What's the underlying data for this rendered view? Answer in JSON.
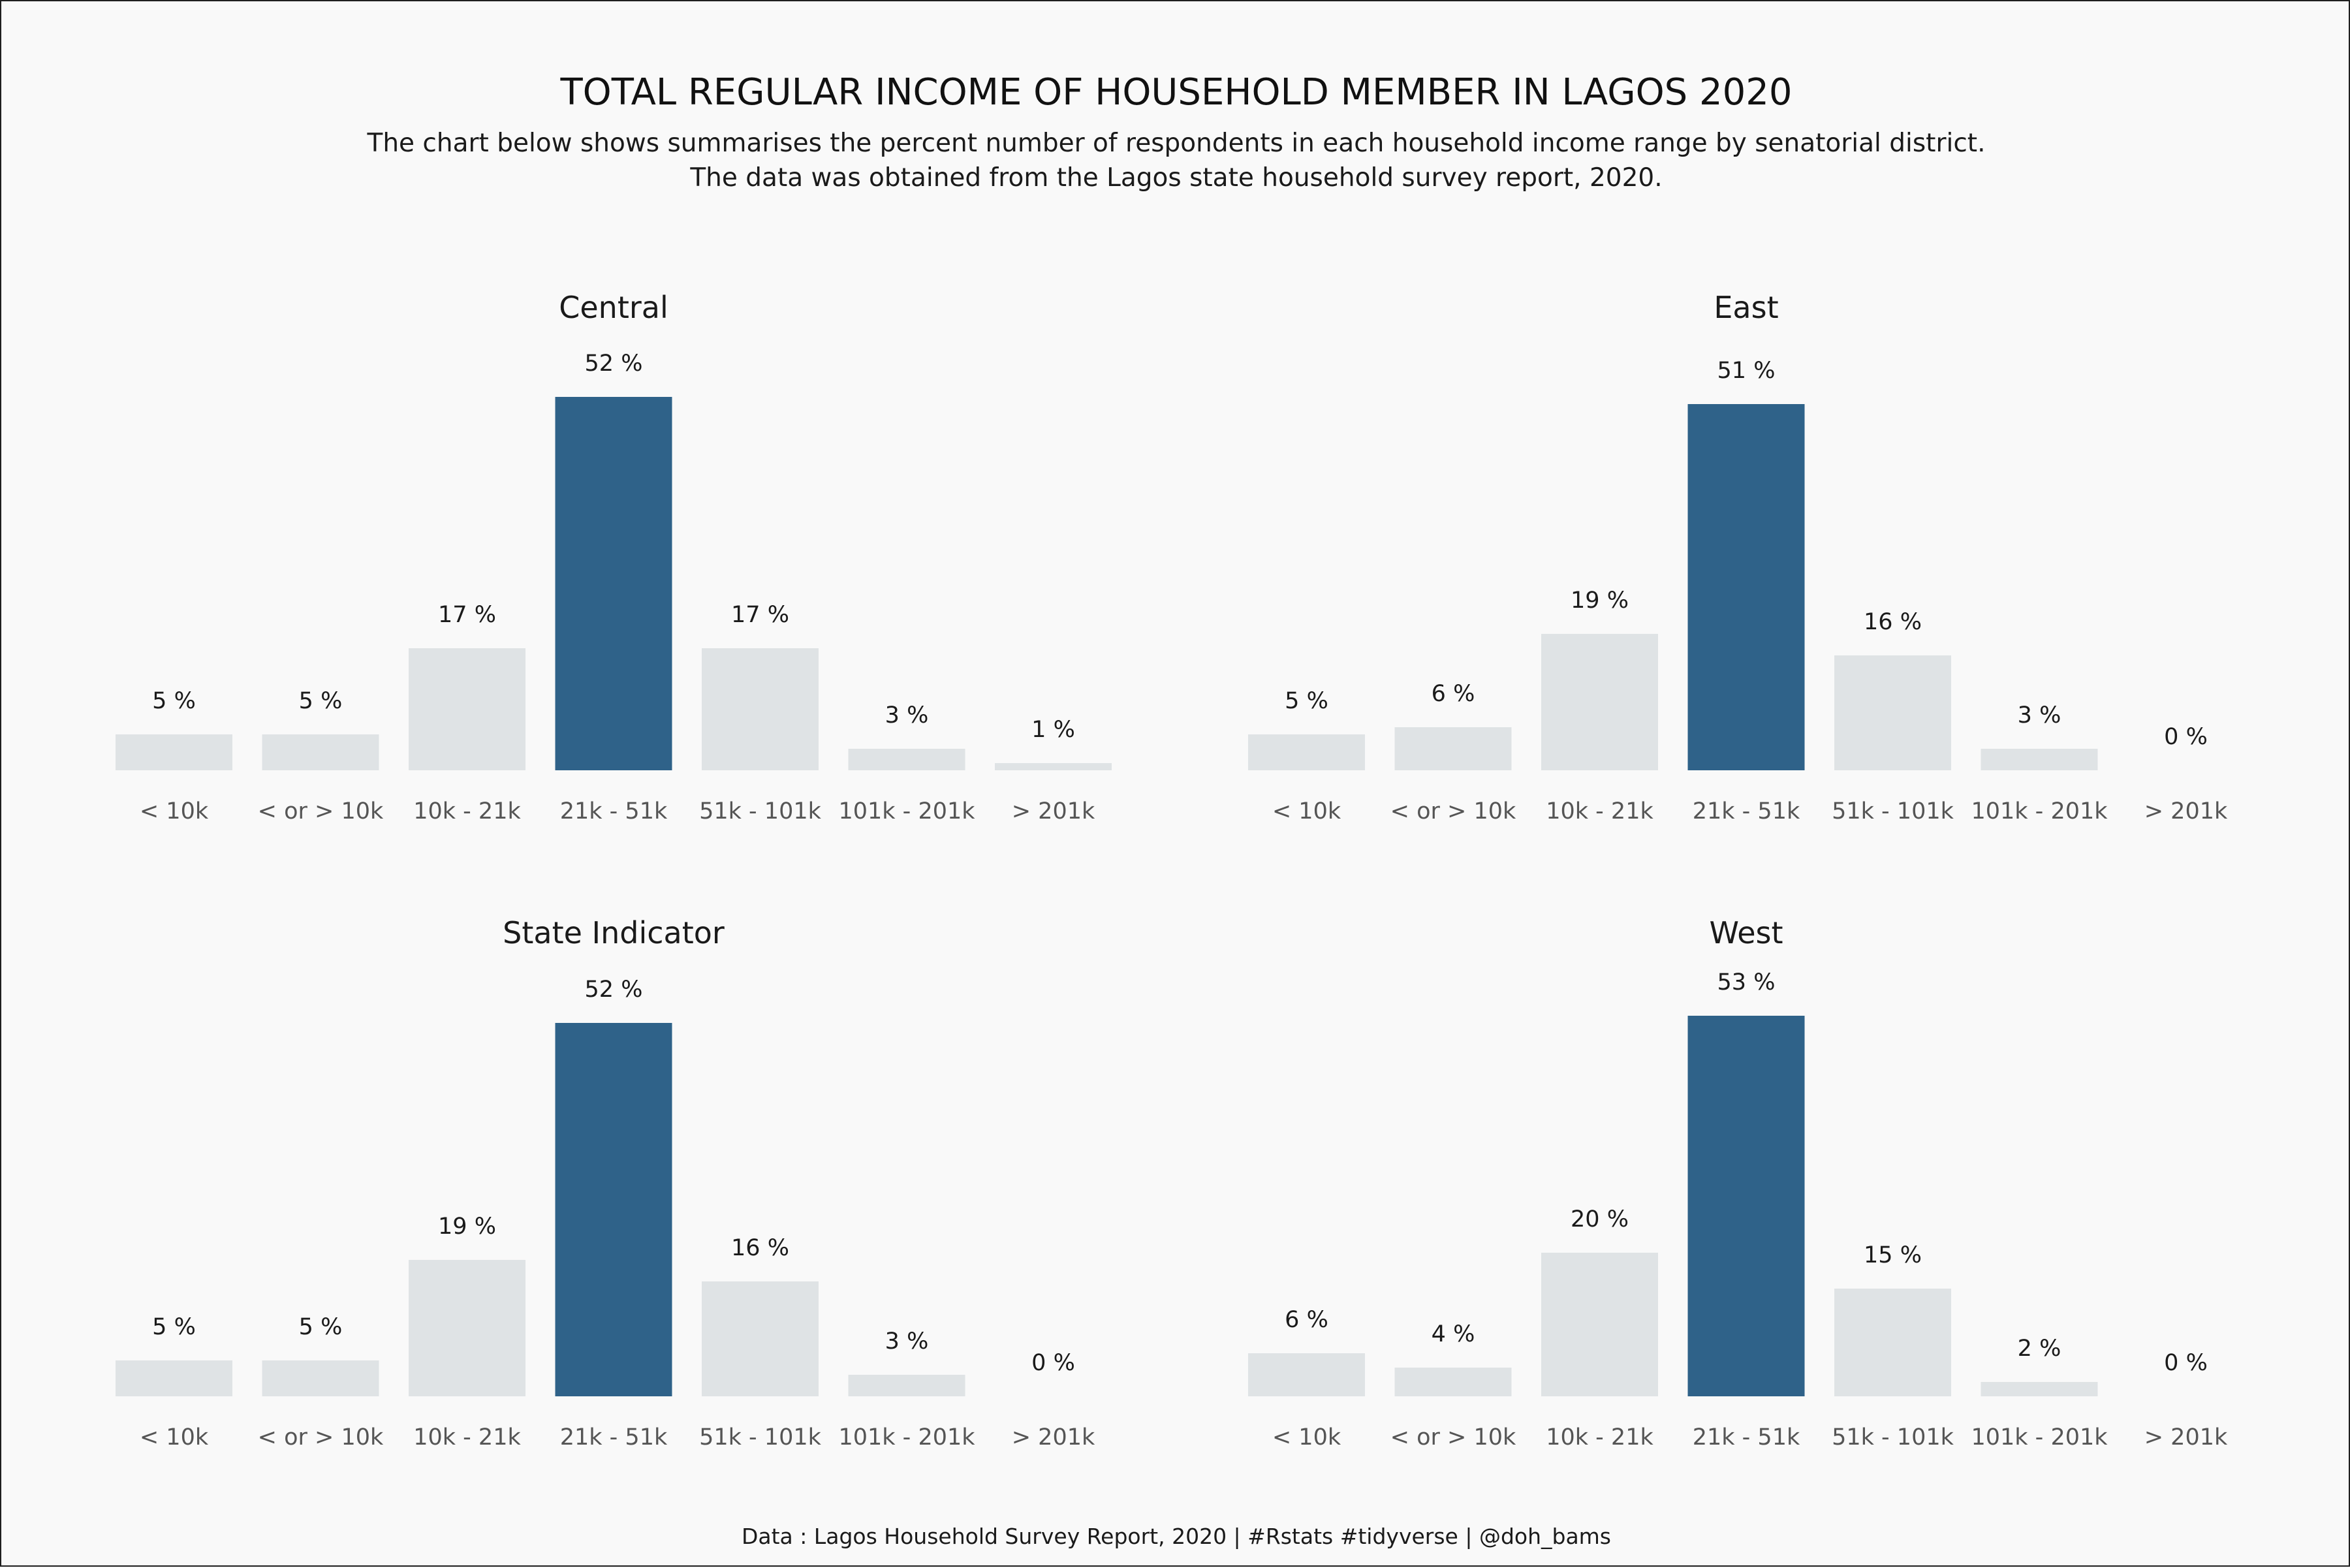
{
  "title": "TOTAL REGULAR INCOME OF HOUSEHOLD MEMBER IN LAGOS 2020",
  "subtitle_lines": [
    "The chart below shows summarises the percent number of respondents in each household income range by senatorial district.",
    "The data was obtained from the Lagos state household survey report, 2020."
  ],
  "caption": "Data : Lagos Household Survey Report, 2020 | #Rstats #tidyverse | @doh_bams",
  "colors": {
    "background": "#f9f9f9",
    "highlight": "#2f6289",
    "base": "#dfe3e5",
    "frame": "#1f1f1f"
  },
  "chart_data": {
    "type": "bar",
    "layout": "facet-2x2",
    "categories": [
      "< 10k",
      "< or > 10k",
      "10k - 21k",
      "21k - 51k",
      "51k - 101k",
      "101k - 201k",
      "> 201k"
    ],
    "highlight_category": "21k - 51k",
    "value_suffix": " %",
    "ylim": [
      0,
      55
    ],
    "grid": false,
    "legend": "none",
    "panels": [
      {
        "name": "Central",
        "values": [
          5,
          5,
          17,
          52,
          17,
          3,
          1
        ]
      },
      {
        "name": "East",
        "values": [
          5,
          6,
          19,
          51,
          16,
          3,
          0
        ]
      },
      {
        "name": "State Indicator",
        "values": [
          5,
          5,
          19,
          52,
          16,
          3,
          0
        ]
      },
      {
        "name": "West",
        "values": [
          6,
          4,
          20,
          53,
          15,
          2,
          0
        ]
      }
    ]
  }
}
